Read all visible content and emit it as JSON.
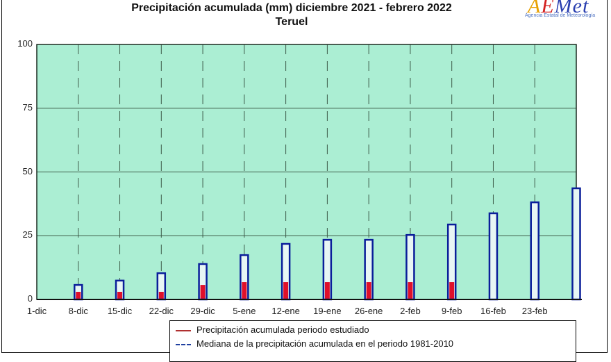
{
  "header": {
    "title_line1": "Precipitación acumulada (mm) diciembre 2021 - febrero 2022",
    "title_line2": "Teruel"
  },
  "logo": {
    "word_a": "A",
    "word_l": "E",
    "word_rest": "Met",
    "subtitle": "Agencia Estatal de Meteorología"
  },
  "legend": {
    "items": [
      {
        "label": "Precipitación acumulada periodo estudiado",
        "color": "#e0102a"
      },
      {
        "label": "Mediana de la precipitación acumulada en el periodo 1981-2010",
        "color": "#0a1e9a"
      }
    ]
  },
  "colors": {
    "plot_bg": "#abeed3",
    "grid": "#3c5a48",
    "bar_outline": "#0a1e9a",
    "bar_inner": "#e8f6f4",
    "observed_fill": "#e0102a"
  },
  "chart_data": {
    "type": "bar",
    "title": "Precipitación acumulada (mm) diciembre 2021 - febrero 2022",
    "subtitle": "Teruel",
    "xlabel": "",
    "ylabel": "",
    "ylim": [
      0,
      100
    ],
    "yticks": [
      0,
      25,
      50,
      75,
      100
    ],
    "grid": true,
    "legend_position": "bottom",
    "categories": [
      "1-dic",
      "8-dic",
      "15-dic",
      "22-dic",
      "29-dic",
      "5-ene",
      "12-ene",
      "19-ene",
      "26-ene",
      "2-feb",
      "9-feb",
      "16-feb",
      "23-feb",
      ""
    ],
    "series": [
      {
        "name": "Mediana de la precipitación acumulada en el periodo 1981-2010",
        "style": "outlined bar",
        "values": [
          0,
          5.7,
          7.4,
          10.3,
          13.9,
          17.4,
          21.8,
          23.4,
          23.4,
          25.3,
          29.4,
          33.8,
          38.1,
          43.6
        ]
      },
      {
        "name": "Precipitación acumulada periodo estudiado",
        "style": "filled bar",
        "values": [
          0,
          3.0,
          3.0,
          3.0,
          5.7,
          6.8,
          6.8,
          6.8,
          6.8,
          6.8,
          6.8,
          null,
          null,
          null
        ]
      }
    ]
  }
}
